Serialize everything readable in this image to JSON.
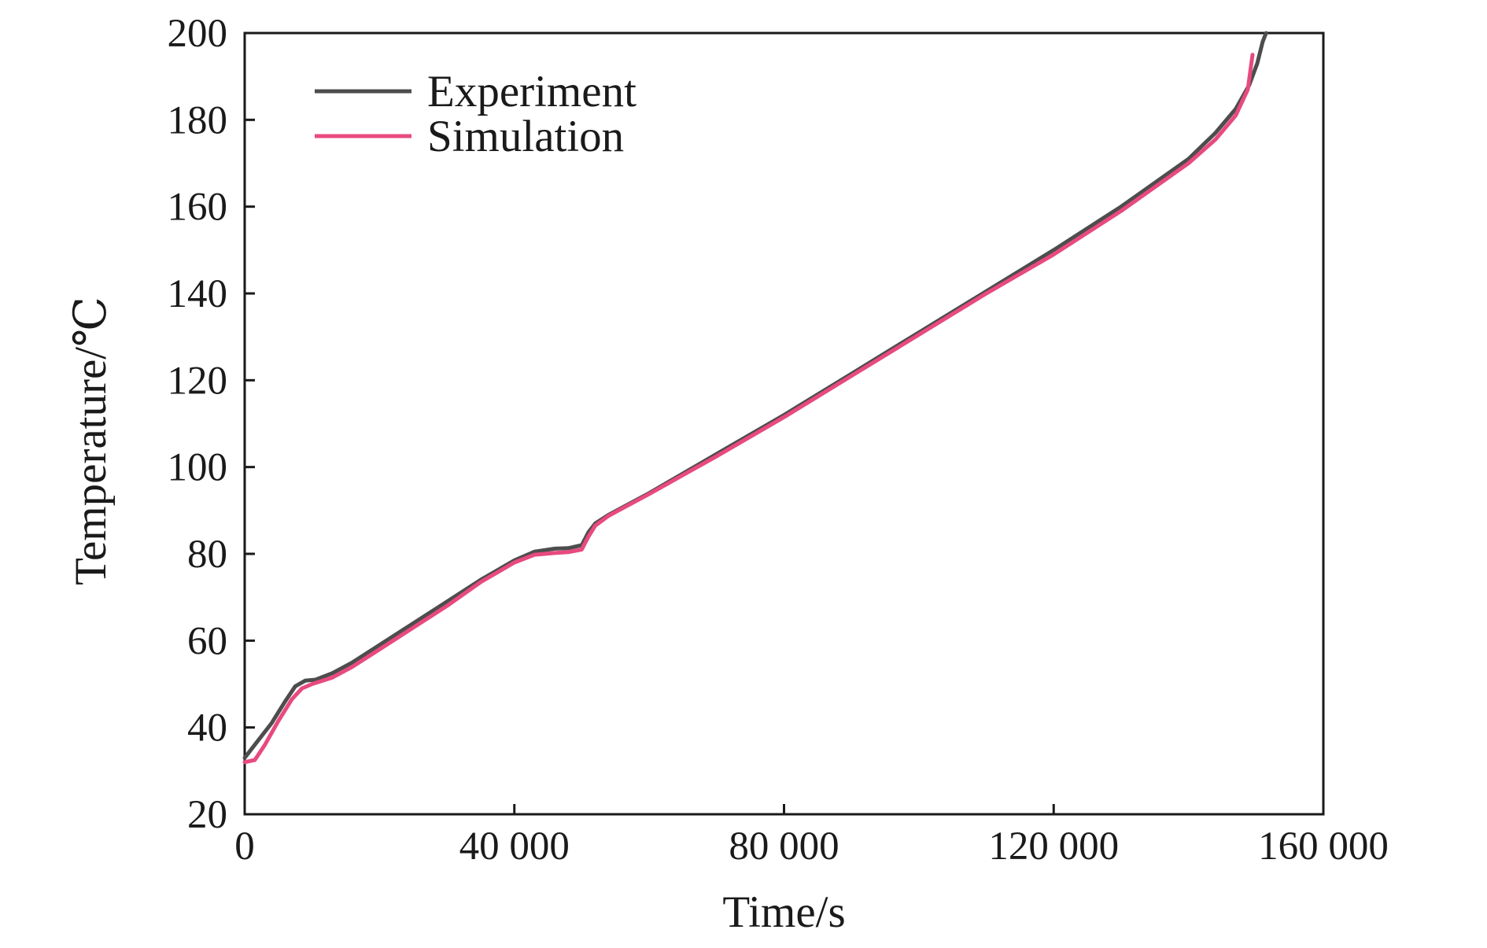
{
  "chart_data": {
    "type": "line",
    "xlabel": "Time/s",
    "ylabel": "Temperature/℃",
    "xlim": [
      0,
      160000
    ],
    "ylim": [
      20,
      200
    ],
    "x_ticks": [
      0,
      40000,
      80000,
      120000,
      160000
    ],
    "x_tick_labels": [
      "0",
      "40 000",
      "80 000",
      "120 000",
      "160 000"
    ],
    "y_ticks": [
      20,
      40,
      60,
      80,
      100,
      120,
      140,
      160,
      180,
      200
    ],
    "y_tick_labels": [
      "20",
      "40",
      "60",
      "80",
      "100",
      "120",
      "140",
      "160",
      "180",
      "200"
    ],
    "grid": false,
    "legend_position": "top-left",
    "series": [
      {
        "name": "Experiment",
        "color": "#4d4d4d",
        "x": [
          0,
          2000,
          4000,
          6000,
          7500,
          9000,
          10500,
          13000,
          16000,
          20000,
          25000,
          30000,
          35000,
          40000,
          43000,
          46000,
          48000,
          50000,
          51000,
          52000,
          54000,
          57000,
          60000,
          70000,
          80000,
          90000,
          100000,
          110000,
          120000,
          130000,
          140000,
          144000,
          147000,
          149000,
          150200,
          151000,
          151500
        ],
        "y": [
          33,
          37,
          41,
          46,
          49.5,
          50.8,
          51,
          52.5,
          55,
          59,
          64,
          69,
          74,
          78.5,
          80.5,
          81.2,
          81.3,
          82,
          85,
          87,
          89,
          91.5,
          94,
          103,
          112,
          121.5,
          131,
          140.5,
          150,
          160,
          171,
          177,
          182.5,
          188,
          193,
          198,
          200
        ]
      },
      {
        "name": "Simulation",
        "color": "#e84a7f",
        "x": [
          0,
          1500,
          3000,
          5000,
          7000,
          8500,
          10000,
          13000,
          16000,
          20000,
          25000,
          30000,
          35000,
          40000,
          43000,
          46000,
          48000,
          50000,
          51000,
          52000,
          54000,
          57000,
          60000,
          70000,
          80000,
          90000,
          100000,
          110000,
          120000,
          130000,
          140000,
          144000,
          147000,
          148800,
          149500
        ],
        "y": [
          32,
          32.5,
          36,
          41.5,
          46.5,
          49,
          50,
          51.5,
          54,
          58,
          63,
          68,
          73.5,
          78,
          79.8,
          80.2,
          80.4,
          81,
          84,
          86.5,
          88.8,
          91.3,
          93.8,
          102.5,
          111.5,
          121,
          130.5,
          140,
          149,
          159,
          170,
          175.5,
          181,
          187,
          195
        ]
      }
    ]
  }
}
